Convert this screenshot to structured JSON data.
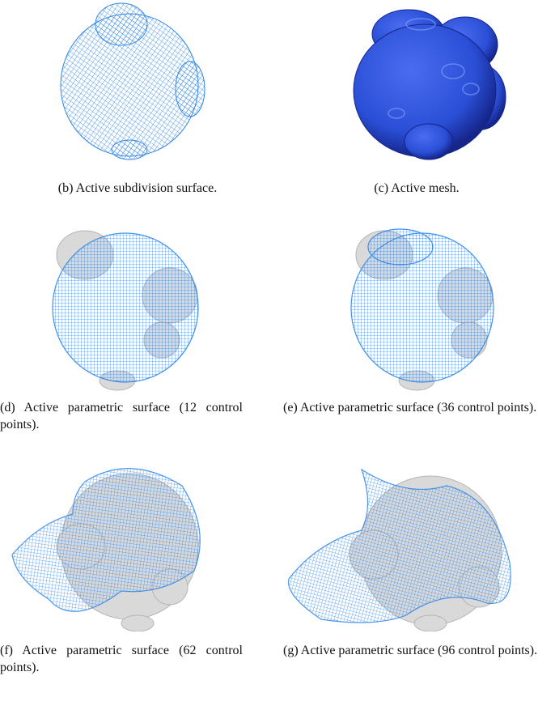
{
  "figure": {
    "panels": [
      {
        "id": "b",
        "caption": "(b) Active subdivision surface."
      },
      {
        "id": "c",
        "caption": "(c) Active mesh."
      },
      {
        "id": "d",
        "caption": "(d) Active parametric surface (12 control points)."
      },
      {
        "id": "e",
        "caption": "(e) Active parametric surface (36 control points)."
      },
      {
        "id": "f",
        "caption": "(f) Active parametric surface (62 control points)."
      },
      {
        "id": "g",
        "caption": "(g) Active parametric surface (96 control points)."
      }
    ]
  },
  "colors": {
    "wire_blue": "#2f86e8",
    "mesh_blue": "#2a4fd6",
    "mesh_dark": "#15258a",
    "target_gray": "#d9d9d9"
  }
}
